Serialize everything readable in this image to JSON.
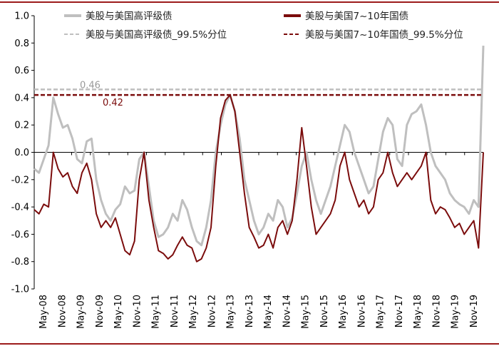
{
  "chart_data": {
    "type": "line",
    "title": "",
    "xlabel": "",
    "ylabel": "",
    "ylim": [
      -1.0,
      1.0
    ],
    "yticks": [
      "1.0",
      "0.8",
      "0.6",
      "0.4",
      "0.2",
      "0.0",
      "-0.2",
      "-0.4",
      "-0.6",
      "-0.8",
      "-1.0"
    ],
    "ytick_values": [
      1.0,
      0.8,
      0.6,
      0.4,
      0.2,
      0.0,
      -0.2,
      -0.4,
      -0.6,
      -0.8,
      -1.0
    ],
    "xticks": [
      "May-08",
      "Nov-08",
      "May-09",
      "Nov-09",
      "May-10",
      "Nov-10",
      "May-11",
      "Nov-11",
      "May-12",
      "Nov-12",
      "May-13",
      "Nov-13",
      "May-14",
      "Nov-14",
      "May-15",
      "Nov-15",
      "May-16",
      "Nov-16",
      "May-17",
      "Nov-17",
      "May-18",
      "Nov-18",
      "May-19",
      "Nov-19"
    ],
    "legend_position": "top",
    "series": [
      {
        "name": "美股与美国高评级债",
        "color": "#bfbfbf",
        "style": "solid",
        "points": [
          [
            0,
            -0.12
          ],
          [
            1,
            -0.15
          ],
          [
            2,
            -0.05
          ],
          [
            3,
            0.05
          ],
          [
            4,
            0.4
          ],
          [
            5,
            0.28
          ],
          [
            6,
            0.18
          ],
          [
            7,
            0.2
          ],
          [
            8,
            0.1
          ],
          [
            9,
            -0.05
          ],
          [
            10,
            -0.08
          ],
          [
            11,
            0.08
          ],
          [
            12,
            0.1
          ],
          [
            13,
            -0.2
          ],
          [
            14,
            -0.35
          ],
          [
            15,
            -0.45
          ],
          [
            16,
            -0.5
          ],
          [
            17,
            -0.42
          ],
          [
            18,
            -0.38
          ],
          [
            19,
            -0.25
          ],
          [
            20,
            -0.3
          ],
          [
            21,
            -0.28
          ],
          [
            22,
            -0.05
          ],
          [
            23,
            0.0
          ],
          [
            24,
            -0.25
          ],
          [
            25,
            -0.5
          ],
          [
            26,
            -0.62
          ],
          [
            27,
            -0.6
          ],
          [
            28,
            -0.55
          ],
          [
            29,
            -0.45
          ],
          [
            30,
            -0.5
          ],
          [
            31,
            -0.35
          ],
          [
            32,
            -0.42
          ],
          [
            33,
            -0.55
          ],
          [
            34,
            -0.65
          ],
          [
            35,
            -0.68
          ],
          [
            36,
            -0.55
          ],
          [
            37,
            -0.35
          ],
          [
            38,
            0.0
          ],
          [
            39,
            0.2
          ],
          [
            40,
            0.35
          ],
          [
            41,
            0.42
          ],
          [
            42,
            0.3
          ],
          [
            43,
            0.1
          ],
          [
            44,
            -0.2
          ],
          [
            45,
            -0.35
          ],
          [
            46,
            -0.5
          ],
          [
            47,
            -0.6
          ],
          [
            48,
            -0.55
          ],
          [
            49,
            -0.45
          ],
          [
            50,
            -0.5
          ],
          [
            51,
            -0.35
          ],
          [
            52,
            -0.4
          ],
          [
            53,
            -0.55
          ],
          [
            54,
            -0.48
          ],
          [
            55,
            -0.3
          ],
          [
            56,
            -0.1
          ],
          [
            57,
            0.0
          ],
          [
            58,
            -0.2
          ],
          [
            59,
            -0.35
          ],
          [
            60,
            -0.45
          ],
          [
            61,
            -0.35
          ],
          [
            62,
            -0.25
          ],
          [
            63,
            -0.1
          ],
          [
            64,
            0.05
          ],
          [
            65,
            0.2
          ],
          [
            66,
            0.15
          ],
          [
            67,
            0.0
          ],
          [
            68,
            -0.1
          ],
          [
            69,
            -0.2
          ],
          [
            70,
            -0.3
          ],
          [
            71,
            -0.25
          ],
          [
            72,
            -0.05
          ],
          [
            73,
            0.15
          ],
          [
            74,
            0.25
          ],
          [
            75,
            0.2
          ],
          [
            76,
            -0.05
          ],
          [
            77,
            -0.1
          ],
          [
            78,
            0.2
          ],
          [
            79,
            0.28
          ],
          [
            80,
            0.3
          ],
          [
            81,
            0.35
          ],
          [
            82,
            0.2
          ],
          [
            83,
            0.0
          ],
          [
            84,
            -0.1
          ],
          [
            85,
            -0.15
          ],
          [
            86,
            -0.2
          ],
          [
            87,
            -0.3
          ],
          [
            88,
            -0.35
          ],
          [
            89,
            -0.38
          ],
          [
            90,
            -0.4
          ],
          [
            91,
            -0.45
          ],
          [
            92,
            -0.35
          ],
          [
            93,
            -0.4
          ],
          [
            94,
            0.78
          ]
        ]
      },
      {
        "name": "美股与美国7~10年国债",
        "color": "#7b0c0c",
        "style": "solid",
        "points": [
          [
            0,
            -0.42
          ],
          [
            1,
            -0.45
          ],
          [
            2,
            -0.38
          ],
          [
            3,
            -0.4
          ],
          [
            4,
            0.0
          ],
          [
            5,
            -0.12
          ],
          [
            6,
            -0.18
          ],
          [
            7,
            -0.15
          ],
          [
            8,
            -0.25
          ],
          [
            9,
            -0.3
          ],
          [
            10,
            -0.15
          ],
          [
            11,
            -0.08
          ],
          [
            12,
            -0.2
          ],
          [
            13,
            -0.45
          ],
          [
            14,
            -0.55
          ],
          [
            15,
            -0.5
          ],
          [
            16,
            -0.55
          ],
          [
            17,
            -0.48
          ],
          [
            18,
            -0.6
          ],
          [
            19,
            -0.72
          ],
          [
            20,
            -0.75
          ],
          [
            21,
            -0.65
          ],
          [
            22,
            -0.2
          ],
          [
            23,
            0.0
          ],
          [
            24,
            -0.35
          ],
          [
            25,
            -0.55
          ],
          [
            26,
            -0.72
          ],
          [
            27,
            -0.74
          ],
          [
            28,
            -0.78
          ],
          [
            29,
            -0.75
          ],
          [
            30,
            -0.68
          ],
          [
            31,
            -0.62
          ],
          [
            32,
            -0.68
          ],
          [
            33,
            -0.7
          ],
          [
            34,
            -0.8
          ],
          [
            35,
            -0.78
          ],
          [
            36,
            -0.7
          ],
          [
            37,
            -0.55
          ],
          [
            38,
            -0.1
          ],
          [
            39,
            0.25
          ],
          [
            40,
            0.38
          ],
          [
            41,
            0.42
          ],
          [
            42,
            0.3
          ],
          [
            43,
            0.0
          ],
          [
            44,
            -0.3
          ],
          [
            45,
            -0.55
          ],
          [
            46,
            -0.62
          ],
          [
            47,
            -0.7
          ],
          [
            48,
            -0.68
          ],
          [
            49,
            -0.6
          ],
          [
            50,
            -0.7
          ],
          [
            51,
            -0.55
          ],
          [
            52,
            -0.5
          ],
          [
            53,
            -0.6
          ],
          [
            54,
            -0.5
          ],
          [
            55,
            -0.2
          ],
          [
            56,
            0.18
          ],
          [
            57,
            -0.1
          ],
          [
            58,
            -0.4
          ],
          [
            59,
            -0.6
          ],
          [
            60,
            -0.55
          ],
          [
            61,
            -0.5
          ],
          [
            62,
            -0.45
          ],
          [
            63,
            -0.35
          ],
          [
            64,
            -0.1
          ],
          [
            65,
            0.0
          ],
          [
            66,
            -0.2
          ],
          [
            67,
            -0.3
          ],
          [
            68,
            -0.4
          ],
          [
            69,
            -0.35
          ],
          [
            70,
            -0.45
          ],
          [
            71,
            -0.4
          ],
          [
            72,
            -0.2
          ],
          [
            73,
            -0.15
          ],
          [
            74,
            0.0
          ],
          [
            75,
            -0.15
          ],
          [
            76,
            -0.25
          ],
          [
            77,
            -0.2
          ],
          [
            78,
            -0.15
          ],
          [
            79,
            -0.2
          ],
          [
            80,
            -0.15
          ],
          [
            81,
            -0.1
          ],
          [
            82,
            0.0
          ],
          [
            83,
            -0.35
          ],
          [
            84,
            -0.45
          ],
          [
            85,
            -0.4
          ],
          [
            86,
            -0.42
          ],
          [
            87,
            -0.48
          ],
          [
            88,
            -0.55
          ],
          [
            89,
            -0.52
          ],
          [
            90,
            -0.6
          ],
          [
            91,
            -0.55
          ],
          [
            92,
            -0.5
          ],
          [
            93,
            -0.7
          ],
          [
            94,
            0.0
          ]
        ]
      },
      {
        "name": "美股与美国高评级债_99.5%分位",
        "color": "#bfbfbf",
        "style": "dashed",
        "constant": 0.46,
        "label": "0.46"
      },
      {
        "name": "美股与美国7~10年国债_99.5%分位",
        "color": "#7b0c0c",
        "style": "dashed",
        "constant": 0.42,
        "label": "0.42"
      }
    ]
  }
}
